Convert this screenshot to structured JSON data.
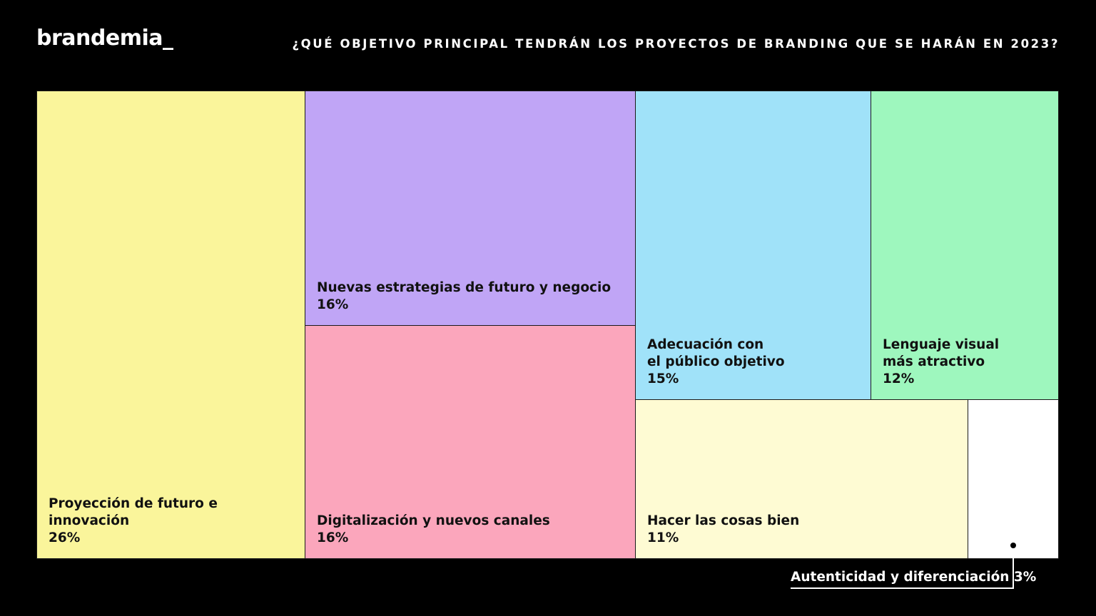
{
  "header": {
    "logo": "brandemia_",
    "title": "¿QUÉ OBJETIVO PRINCIPAL TENDRÁN LOS PROYECTOS DE BRANDING QUE SE HARÁN EN 2023?"
  },
  "chart_data": {
    "type": "treemap",
    "title": "¿QUÉ OBJETIVO PRINCIPAL TENDRÁN LOS PROYECTOS DE BRANDING QUE SE HARÁN EN 2023?",
    "items": [
      {
        "label": "Proyección de futuro e innovación",
        "value": 26,
        "value_label": "26%",
        "color": "#FAF59B"
      },
      {
        "label": "Nuevas estrategias de futuro y negocio",
        "value": 16,
        "value_label": "16%",
        "color": "#C0A5F6"
      },
      {
        "label": "Digitalización y nuevos canales",
        "value": 16,
        "value_label": "16%",
        "color": "#FBA6BC"
      },
      {
        "label": "Adecuación con\nel público objetivo",
        "value": 15,
        "value_label": "15%",
        "color": "#A0E2F9"
      },
      {
        "label": "Lenguaje visual\nmás atractivo",
        "value": 12,
        "value_label": "12%",
        "color": "#9EF7BE"
      },
      {
        "label": "Hacer las cosas bien",
        "value": 11,
        "value_label": "11%",
        "color": "#FEFBD3"
      },
      {
        "label": "Autenticidad y diferenciación",
        "value": 3,
        "value_label": "3%",
        "color": "#FFFFFF"
      }
    ],
    "callout": "Autenticidad y diferenciación 3%"
  }
}
